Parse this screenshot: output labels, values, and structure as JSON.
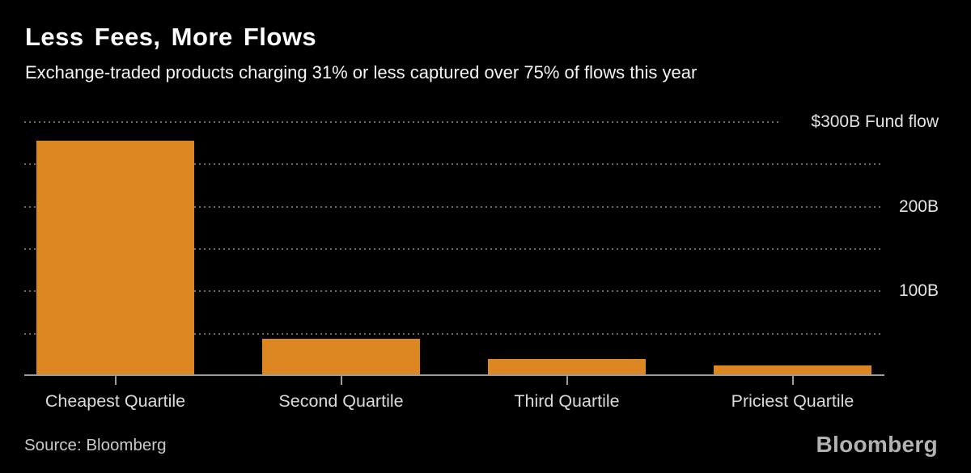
{
  "header": {
    "title": "Less Fees, More Flows",
    "subtitle": "Exchange-traded products charging 31% or less captured over 75% of flows this year"
  },
  "chart_data": {
    "type": "bar",
    "title": "Less Fees, More Flows",
    "subtitle": "Exchange-traded products charging 31% or less captured over 75% of flows this year",
    "categories": [
      "Cheapest Quartile",
      "Second Quartile",
      "Third Quartile",
      "Priciest Quartile"
    ],
    "values": [
      278,
      44,
      20,
      12
    ],
    "unit": "billions USD",
    "xlabel": "",
    "ylabel": "Fund flow",
    "ylim": [
      0,
      300
    ],
    "grid_interval": 50,
    "grid_on": true,
    "legend_position": "none",
    "gridlines": [
      {
        "value": 300,
        "label": "$300B Fund flow"
      },
      {
        "value": 250,
        "label": ""
      },
      {
        "value": 200,
        "label": "200B"
      },
      {
        "value": 150,
        "label": ""
      },
      {
        "value": 100,
        "label": "100B"
      },
      {
        "value": 50,
        "label": ""
      }
    ]
  },
  "footer": {
    "source": "Source: Bloomberg",
    "brand": "Bloomberg"
  },
  "colors": {
    "background": "#000000",
    "title_text": "#ffffff",
    "subtitle_text": "#f5f5f5",
    "bar": "#dd8723",
    "gridline": "#6b6b6b",
    "axis_line": "#9c9c9c",
    "tick": "#9c9c9c",
    "grid_label_text": "#e3e3e3",
    "category_label_text": "#dadada",
    "source_text": "#c9c9c9",
    "brand_text": "#b3b3b3"
  }
}
